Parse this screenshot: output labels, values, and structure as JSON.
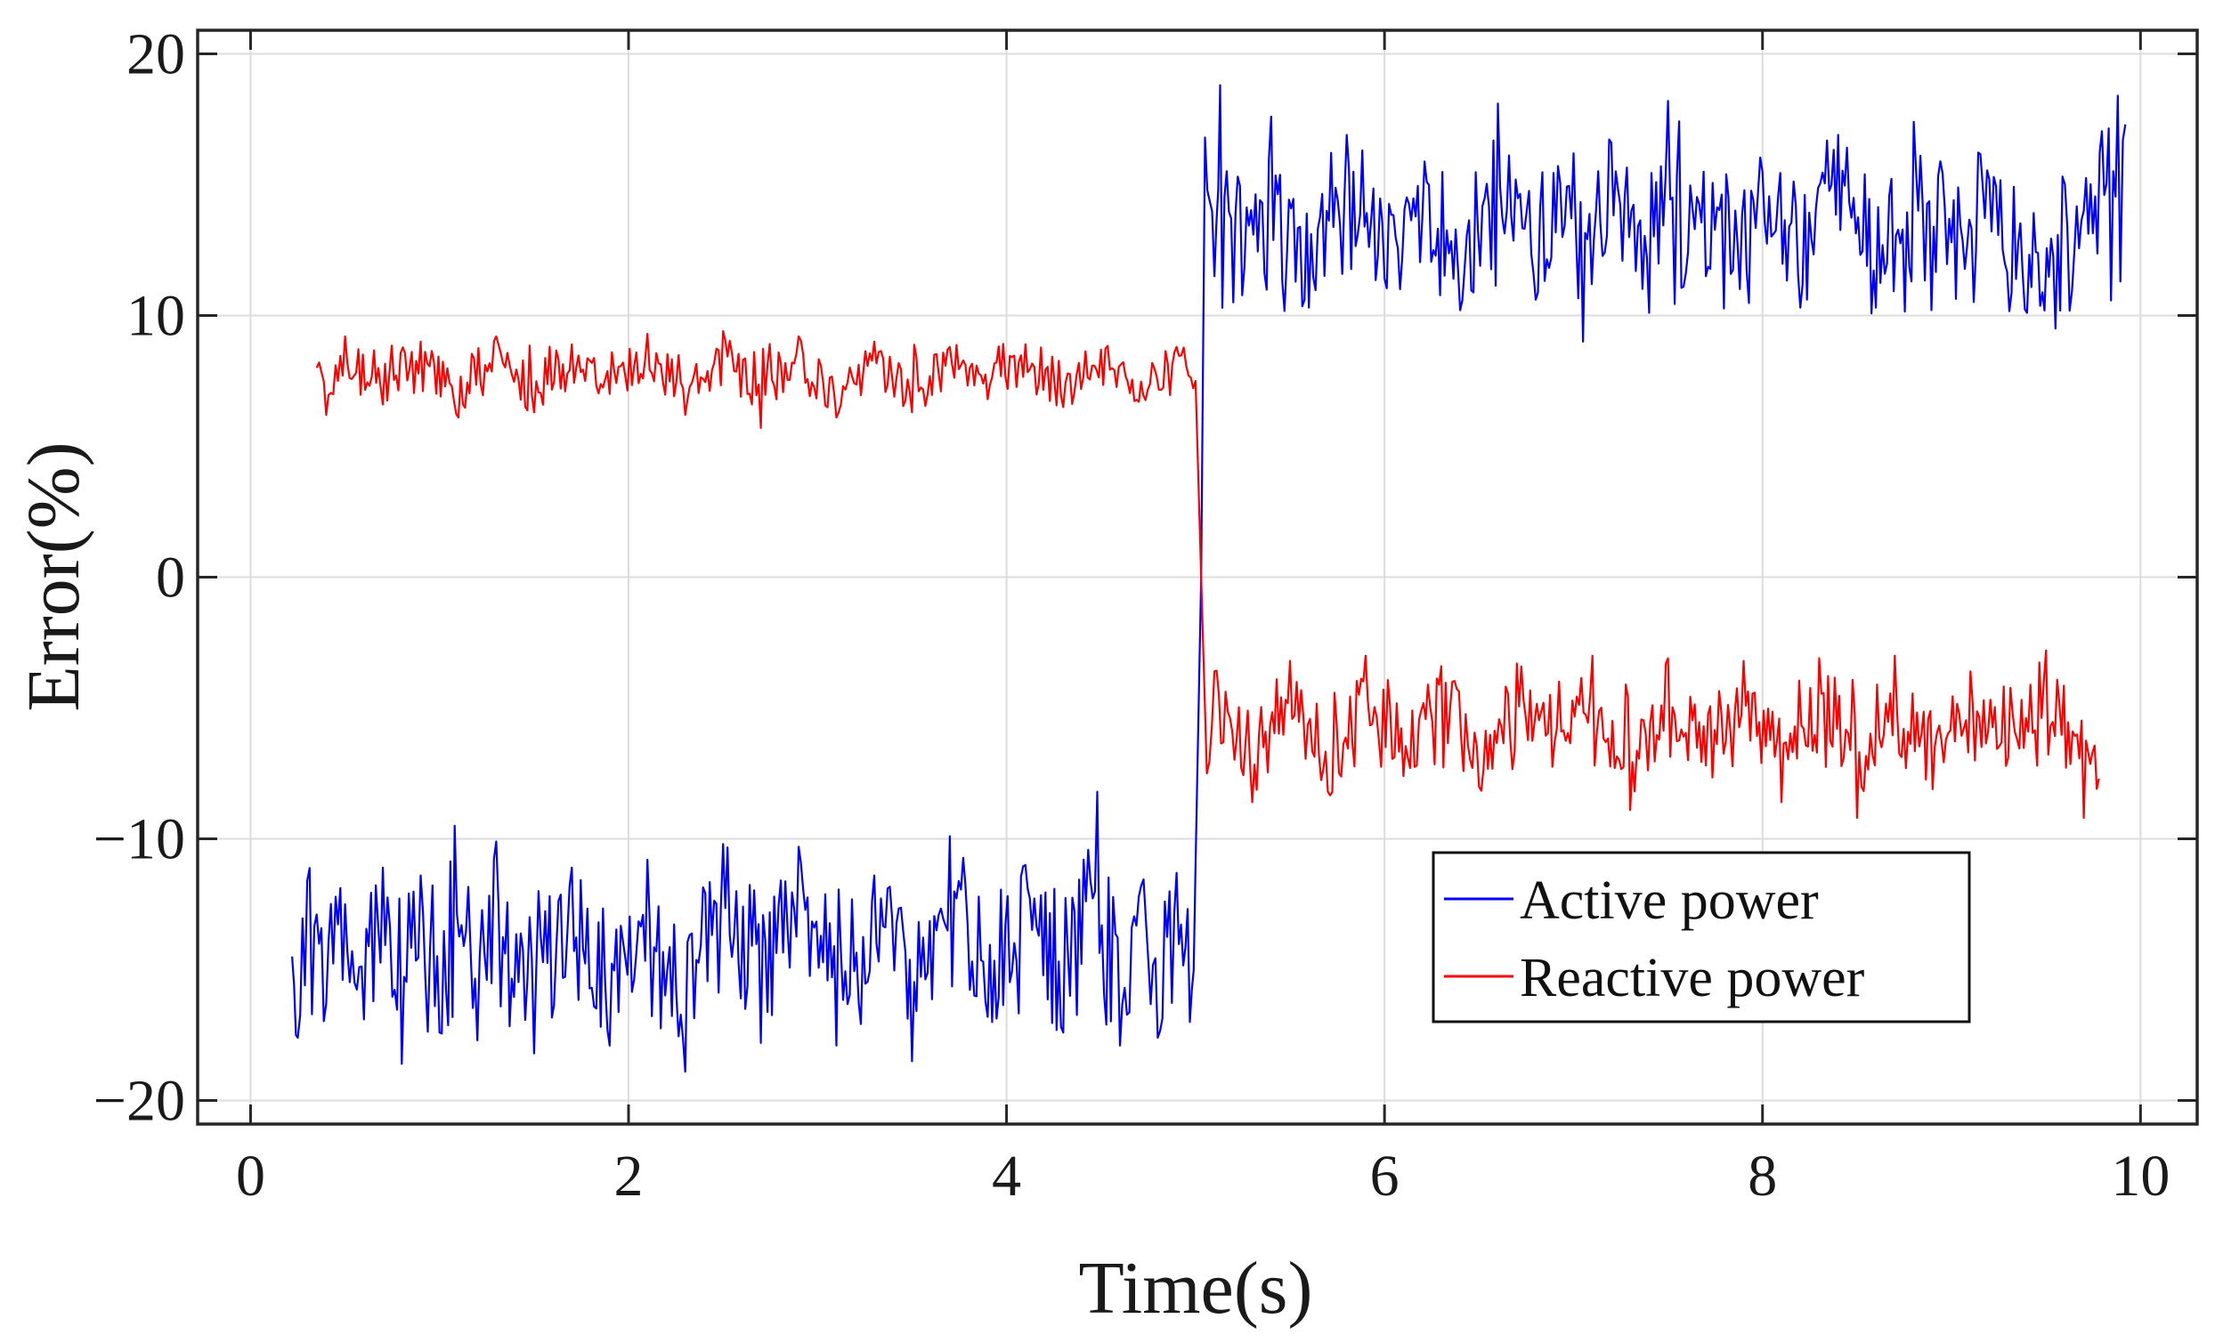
{
  "chart_data": {
    "type": "line",
    "title": "",
    "xlabel": "Time(s)",
    "ylabel": "Error(%)",
    "xlim": [
      -0.28,
      10.3
    ],
    "ylim": [
      -20.9,
      20.9
    ],
    "xticks": [
      0,
      2,
      4,
      6,
      8,
      10
    ],
    "yticks": [
      -20,
      -10,
      0,
      10,
      20
    ],
    "xtick_labels": [
      "0",
      "2",
      "4",
      "6",
      "8",
      "10"
    ],
    "ytick_labels": [
      "−20",
      "−10",
      "0",
      "10",
      "20"
    ],
    "grid": true,
    "legend": {
      "position": "bottom-right",
      "entries": [
        "Active power",
        "Reactive power"
      ]
    },
    "series": [
      {
        "name": "Active power",
        "color": "#0000ff",
        "x_start": 0.22,
        "x_end": 9.92,
        "step_time": 5.03,
        "before": {
          "mean": -14.5,
          "min": -18.9,
          "max": -8.2
        },
        "after": {
          "mean": 12.8,
          "min": 9.0,
          "max": 18.9
        },
        "points": [
          [
            0.22,
            -14.5
          ],
          [
            0.25,
            -17.6
          ],
          [
            0.3,
            -11.6
          ],
          [
            0.4,
            -16.3
          ],
          [
            0.5,
            -12.5
          ],
          [
            0.6,
            -16.9
          ],
          [
            0.7,
            -11.1
          ],
          [
            0.8,
            -18.6
          ],
          [
            0.9,
            -11.4
          ],
          [
            1.0,
            -17.4
          ],
          [
            1.08,
            -9.5
          ],
          [
            1.2,
            -17.7
          ],
          [
            1.3,
            -10.1
          ],
          [
            1.5,
            -18.2
          ],
          [
            1.7,
            -11.1
          ],
          [
            1.9,
            -17.9
          ],
          [
            2.1,
            -10.8
          ],
          [
            2.3,
            -18.9
          ],
          [
            2.5,
            -10.2
          ],
          [
            2.7,
            -17.8
          ],
          [
            2.9,
            -10.3
          ],
          [
            3.1,
            -17.9
          ],
          [
            3.3,
            -11.4
          ],
          [
            3.5,
            -18.5
          ],
          [
            3.7,
            -9.9
          ],
          [
            3.9,
            -16.8
          ],
          [
            4.1,
            -11.0
          ],
          [
            4.3,
            -17.4
          ],
          [
            4.48,
            -8.2
          ],
          [
            4.6,
            -17.9
          ],
          [
            4.7,
            -12.2
          ],
          [
            4.8,
            -17.6
          ],
          [
            4.9,
            -11.3
          ],
          [
            4.97,
            -17.0
          ],
          [
            5.0,
            -11.0
          ],
          [
            5.03,
            0.0
          ],
          [
            5.05,
            16.8
          ],
          [
            5.1,
            11.5
          ],
          [
            5.13,
            18.8
          ],
          [
            5.2,
            10.5
          ],
          [
            5.4,
            17.6
          ],
          [
            5.6,
            10.3
          ],
          [
            5.8,
            16.9
          ],
          [
            6.0,
            11.4
          ],
          [
            6.2,
            13.7
          ],
          [
            6.4,
            10.2
          ],
          [
            6.6,
            18.1
          ],
          [
            6.8,
            10.6
          ],
          [
            7.0,
            16.2
          ],
          [
            7.05,
            9.0
          ],
          [
            7.2,
            16.6
          ],
          [
            7.4,
            10.1
          ],
          [
            7.5,
            18.2
          ],
          [
            7.7,
            11.5
          ],
          [
            8.0,
            15.5
          ],
          [
            8.2,
            10.3
          ],
          [
            8.4,
            16.9
          ],
          [
            8.6,
            10.3
          ],
          [
            8.8,
            17.4
          ],
          [
            9.0,
            12.8
          ],
          [
            9.2,
            15.2
          ],
          [
            9.4,
            10.1
          ],
          [
            9.55,
            9.5
          ],
          [
            9.7,
            14.0
          ],
          [
            9.88,
            18.4
          ],
          [
            9.92,
            17.3
          ]
        ]
      },
      {
        "name": "Reactive power",
        "color": "#ff0000",
        "x_start": 0.35,
        "x_end": 9.78,
        "step_time": 5.03,
        "before": {
          "mean": 7.9,
          "min": 5.7,
          "max": 9.4
        },
        "after": {
          "mean": -5.6,
          "min": -9.2,
          "max": -2.8
        },
        "points": [
          [
            0.35,
            8.0
          ],
          [
            0.4,
            6.2
          ],
          [
            0.5,
            9.2
          ],
          [
            0.7,
            6.6
          ],
          [
            0.9,
            9.0
          ],
          [
            1.1,
            6.1
          ],
          [
            1.3,
            9.2
          ],
          [
            1.5,
            6.3
          ],
          [
            1.7,
            8.9
          ],
          [
            1.9,
            7.0
          ],
          [
            2.1,
            9.3
          ],
          [
            2.3,
            6.2
          ],
          [
            2.5,
            9.4
          ],
          [
            2.7,
            5.7
          ],
          [
            2.9,
            9.2
          ],
          [
            3.1,
            6.1
          ],
          [
            3.3,
            9.0
          ],
          [
            3.5,
            6.3
          ],
          [
            3.7,
            8.8
          ],
          [
            3.9,
            6.8
          ],
          [
            4.1,
            8.9
          ],
          [
            4.3,
            6.5
          ],
          [
            4.5,
            8.7
          ],
          [
            4.7,
            6.7
          ],
          [
            4.9,
            8.8
          ],
          [
            5.0,
            7.5
          ],
          [
            5.03,
            0.0
          ],
          [
            5.06,
            -7.5
          ],
          [
            5.1,
            -3.6
          ],
          [
            5.3,
            -8.6
          ],
          [
            5.5,
            -3.2
          ],
          [
            5.7,
            -8.2
          ],
          [
            5.9,
            -3.0
          ],
          [
            6.1,
            -7.6
          ],
          [
            6.3,
            -3.4
          ],
          [
            6.5,
            -8.0
          ],
          [
            6.7,
            -3.3
          ],
          [
            6.9,
            -6.3
          ],
          [
            7.1,
            -3.0
          ],
          [
            7.3,
            -8.9
          ],
          [
            7.5,
            -3.1
          ],
          [
            7.7,
            -7.2
          ],
          [
            7.9,
            -3.2
          ],
          [
            8.1,
            -8.6
          ],
          [
            8.3,
            -3.1
          ],
          [
            8.5,
            -9.2
          ],
          [
            8.7,
            -3.0
          ],
          [
            8.9,
            -8.1
          ],
          [
            9.1,
            -3.6
          ],
          [
            9.3,
            -6.9
          ],
          [
            9.5,
            -2.8
          ],
          [
            9.7,
            -9.2
          ],
          [
            9.78,
            -7.7
          ]
        ]
      }
    ]
  }
}
